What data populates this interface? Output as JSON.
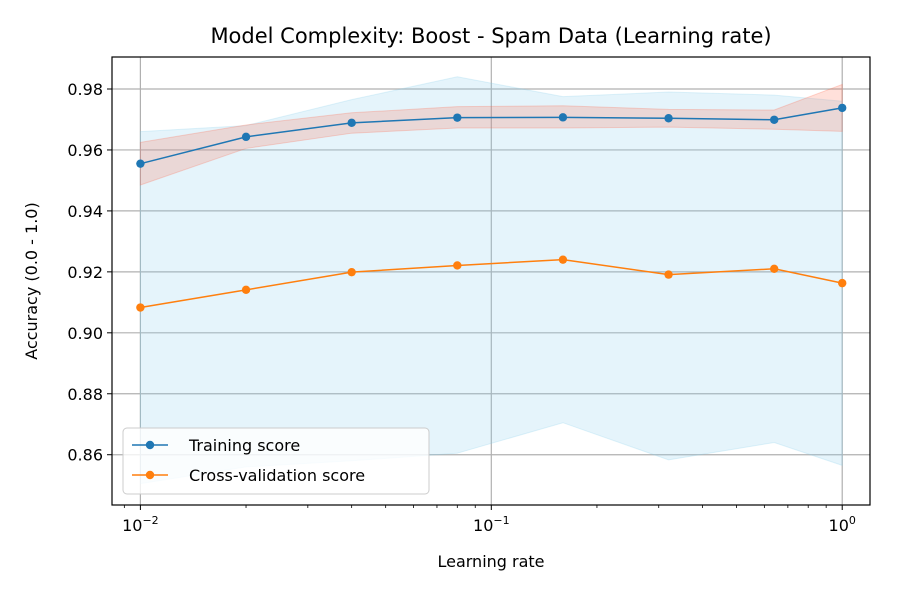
{
  "chart_data": {
    "type": "line",
    "title": "Model Complexity: Boost - Spam Data (Learning rate)",
    "xlabel": "Learning rate",
    "ylabel": "Accuracy (0.0 - 1.0)",
    "xscale": "log",
    "xlim": [
      0.0083,
      1.2
    ],
    "ylim": [
      0.8435,
      0.9905
    ],
    "x_ticks": [
      {
        "value": 0.01,
        "base": "10",
        "exp": "−2"
      },
      {
        "value": 0.1,
        "base": "10",
        "exp": "−1"
      },
      {
        "value": 1,
        "base": "10",
        "exp": "0"
      }
    ],
    "y_ticks": [
      "0.86",
      "0.88",
      "0.90",
      "0.92",
      "0.94",
      "0.96",
      "0.98"
    ],
    "grid": true,
    "legend_position": "lower-left",
    "x": [
      0.01,
      0.02,
      0.04,
      0.08,
      0.16,
      0.32,
      0.64,
      1.0
    ],
    "series": [
      {
        "name": "Training score",
        "color": "#1f77b4",
        "values": [
          0.9555,
          0.9643,
          0.9689,
          0.9706,
          0.9707,
          0.9704,
          0.9699,
          0.9738
        ],
        "band_lower": [
          0.9485,
          0.9605,
          0.9655,
          0.9672,
          0.9672,
          0.9675,
          0.9668,
          0.9661
        ],
        "band_upper": [
          0.9625,
          0.9682,
          0.9722,
          0.9742,
          0.9745,
          0.9733,
          0.9731,
          0.9815
        ]
      },
      {
        "name": "Cross-validation score",
        "color": "#ff7f0e",
        "values": [
          0.9083,
          0.9141,
          0.9199,
          0.9221,
          0.924,
          0.9191,
          0.921,
          0.9163
        ],
        "band_lower": [
          0.8505,
          0.856,
          0.858,
          0.8605,
          0.8705,
          0.8583,
          0.864,
          0.8565
        ],
        "band_upper": [
          0.966,
          0.968,
          0.9765,
          0.984,
          0.9775,
          0.979,
          0.978,
          0.976
        ]
      }
    ]
  }
}
